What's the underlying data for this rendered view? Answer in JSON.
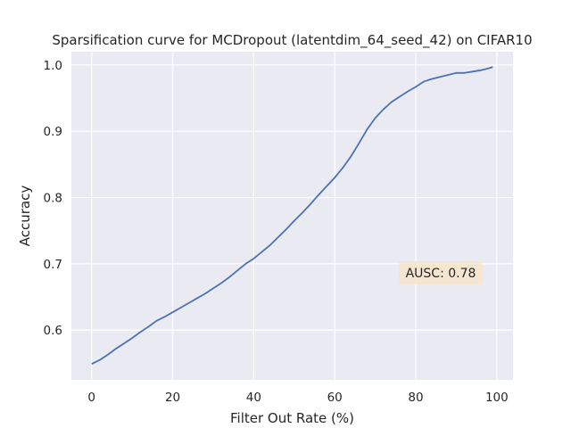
{
  "chart_data": {
    "type": "line",
    "title": "Sparsification curve for MCDropout (latentdim_64_seed_42) on CIFAR10",
    "xlabel": "Filter Out Rate (%)",
    "ylabel": "Accuracy",
    "xlim": [
      -5,
      104
    ],
    "ylim": [
      0.525,
      1.02
    ],
    "xticks": [
      "0",
      "20",
      "40",
      "60",
      "80",
      "100"
    ],
    "yticks": [
      "0.6",
      "0.7",
      "0.8",
      "0.9",
      "1.0"
    ],
    "grid": true,
    "legend": "none",
    "line_color": "#4c72b0",
    "background_color": "#eaeaf2",
    "annotation": {
      "text": "AUSC: 0.78",
      "x": 85,
      "y": 0.688,
      "box_color": "#f5e6cc"
    },
    "series": [
      {
        "x": [
          0,
          2,
          4,
          6,
          8,
          10,
          12,
          14,
          16,
          18,
          20,
          22,
          24,
          26,
          28,
          30,
          32,
          34,
          36,
          38,
          40,
          42,
          44,
          46,
          48,
          50,
          52,
          54,
          56,
          58,
          60,
          62,
          64,
          66,
          68,
          70,
          72,
          74,
          76,
          78,
          80,
          82,
          84,
          86,
          88,
          90,
          92,
          94,
          96,
          98,
          99
        ],
        "values": [
          0.549,
          0.555,
          0.563,
          0.572,
          0.58,
          0.588,
          0.597,
          0.605,
          0.614,
          0.62,
          0.627,
          0.634,
          0.641,
          0.648,
          0.655,
          0.663,
          0.671,
          0.68,
          0.69,
          0.7,
          0.708,
          0.718,
          0.728,
          0.74,
          0.752,
          0.765,
          0.777,
          0.79,
          0.804,
          0.817,
          0.83,
          0.845,
          0.862,
          0.882,
          0.903,
          0.92,
          0.933,
          0.944,
          0.952,
          0.96,
          0.967,
          0.975,
          0.979,
          0.982,
          0.985,
          0.988,
          0.988,
          0.99,
          0.992,
          0.995,
          0.997
        ]
      }
    ]
  }
}
